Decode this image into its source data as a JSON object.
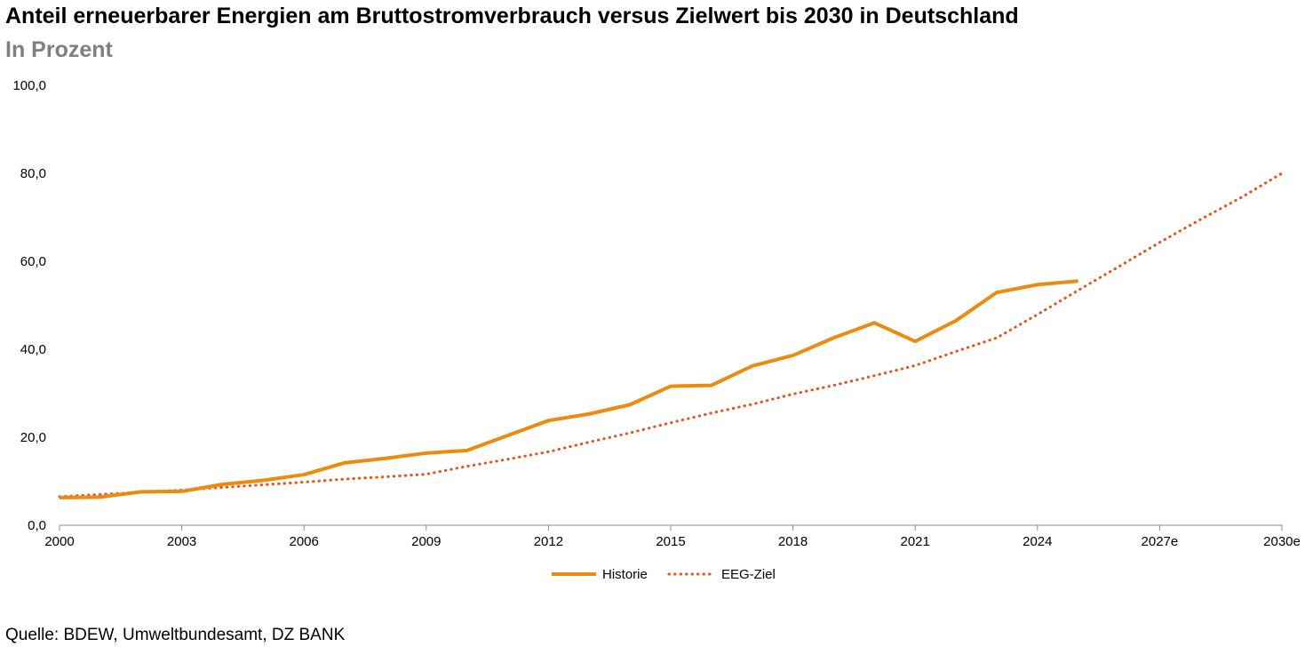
{
  "chart_data": {
    "type": "line",
    "title": "Anteil erneuerbarer Energien am Bruttostromverbrauch versus Zielwert bis 2030 in Deutschland",
    "subtitle": "In Prozent",
    "xlabel": "",
    "ylabel": "",
    "x": [
      "2000",
      "2001",
      "2002",
      "2003",
      "2004",
      "2005",
      "2006",
      "2007",
      "2008",
      "2009",
      "2010",
      "2011",
      "2012",
      "2013",
      "2014",
      "2015",
      "2016",
      "2017",
      "2018",
      "2019",
      "2020",
      "2021",
      "2022",
      "2023",
      "2024",
      "2025",
      "2026",
      "2027e",
      "2028",
      "2029",
      "2030e"
    ],
    "x_tick_labels": [
      "2000",
      "2003",
      "2006",
      "2009",
      "2012",
      "2015",
      "2018",
      "2021",
      "2024",
      "2027e",
      "2030e"
    ],
    "y_tick_labels": [
      "0,0",
      "20,0",
      "40,0",
      "60,0",
      "80,0",
      "100,0"
    ],
    "ylim": [
      0,
      100
    ],
    "grid": false,
    "legend_position": "bottom",
    "series": [
      {
        "name": "Historie",
        "color": "#EE8A0E",
        "style": "solid",
        "values": [
          6.3,
          6.4,
          7.6,
          7.7,
          9.3,
          10.2,
          11.5,
          14.2,
          15.2,
          16.4,
          17.0,
          20.4,
          23.8,
          25.3,
          27.4,
          31.6,
          31.8,
          36.2,
          38.6,
          42.6,
          46.0,
          41.8,
          46.5,
          52.9,
          54.7,
          55.5,
          null,
          null,
          null,
          null,
          null
        ]
      },
      {
        "name": "EEG-Ziel",
        "color": "#E5541B",
        "style": "dotted",
        "values": [
          6.5,
          7.0,
          7.5,
          8.0,
          8.6,
          9.2,
          9.8,
          10.5,
          11.0,
          11.6,
          13.4,
          15.0,
          16.7,
          18.9,
          21.0,
          23.3,
          25.5,
          27.5,
          29.8,
          31.8,
          34.0,
          36.3,
          39.5,
          42.6,
          47.9,
          53.4,
          58.8,
          64.3,
          69.5,
          74.5,
          80.0
        ]
      }
    ]
  },
  "source_note": "Quelle: BDEW, Umweltbundesamt, DZ BANK"
}
